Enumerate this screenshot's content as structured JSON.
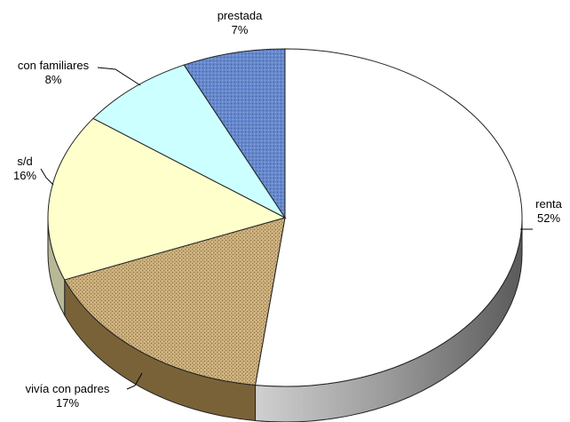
{
  "chart_data": {
    "type": "pie",
    "title": "",
    "slices": [
      {
        "label": "renta",
        "pct_label": "52%",
        "value": 52,
        "color": "#ffffff",
        "side_color": "#8a8a8a"
      },
      {
        "label": "vivía con padres",
        "pct_label": "17%",
        "value": 17,
        "color": "#c2a572",
        "side_color": "#7a6238"
      },
      {
        "label": "s/d",
        "pct_label": "16%",
        "value": 16,
        "color": "#ffffcc",
        "side_color": "#b8b896"
      },
      {
        "label": "con familiares",
        "pct_label": "8%",
        "value": 8,
        "color": "#ccffff",
        "side_color": "#8fb8b8"
      },
      {
        "label": "prestada",
        "pct_label": "7%",
        "value": 7,
        "color": "#5b7fc4",
        "side_color": "#3a5590"
      }
    ],
    "legend": "none",
    "style": "3d-pie"
  }
}
